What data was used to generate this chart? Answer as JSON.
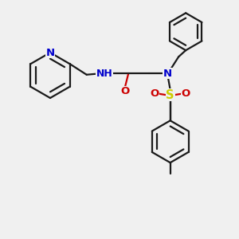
{
  "bg_color": "#f0f0f0",
  "bond_color": "#1a1a1a",
  "N_color": "#0000cc",
  "O_color": "#cc0000",
  "S_color": "#cccc00",
  "H_color": "#008080",
  "line_width": 1.6,
  "font_size": 9.5,
  "dpi": 100,
  "figsize": [
    3.0,
    3.0
  ],
  "xlim": [
    0,
    10
  ],
  "ylim": [
    0,
    10
  ]
}
